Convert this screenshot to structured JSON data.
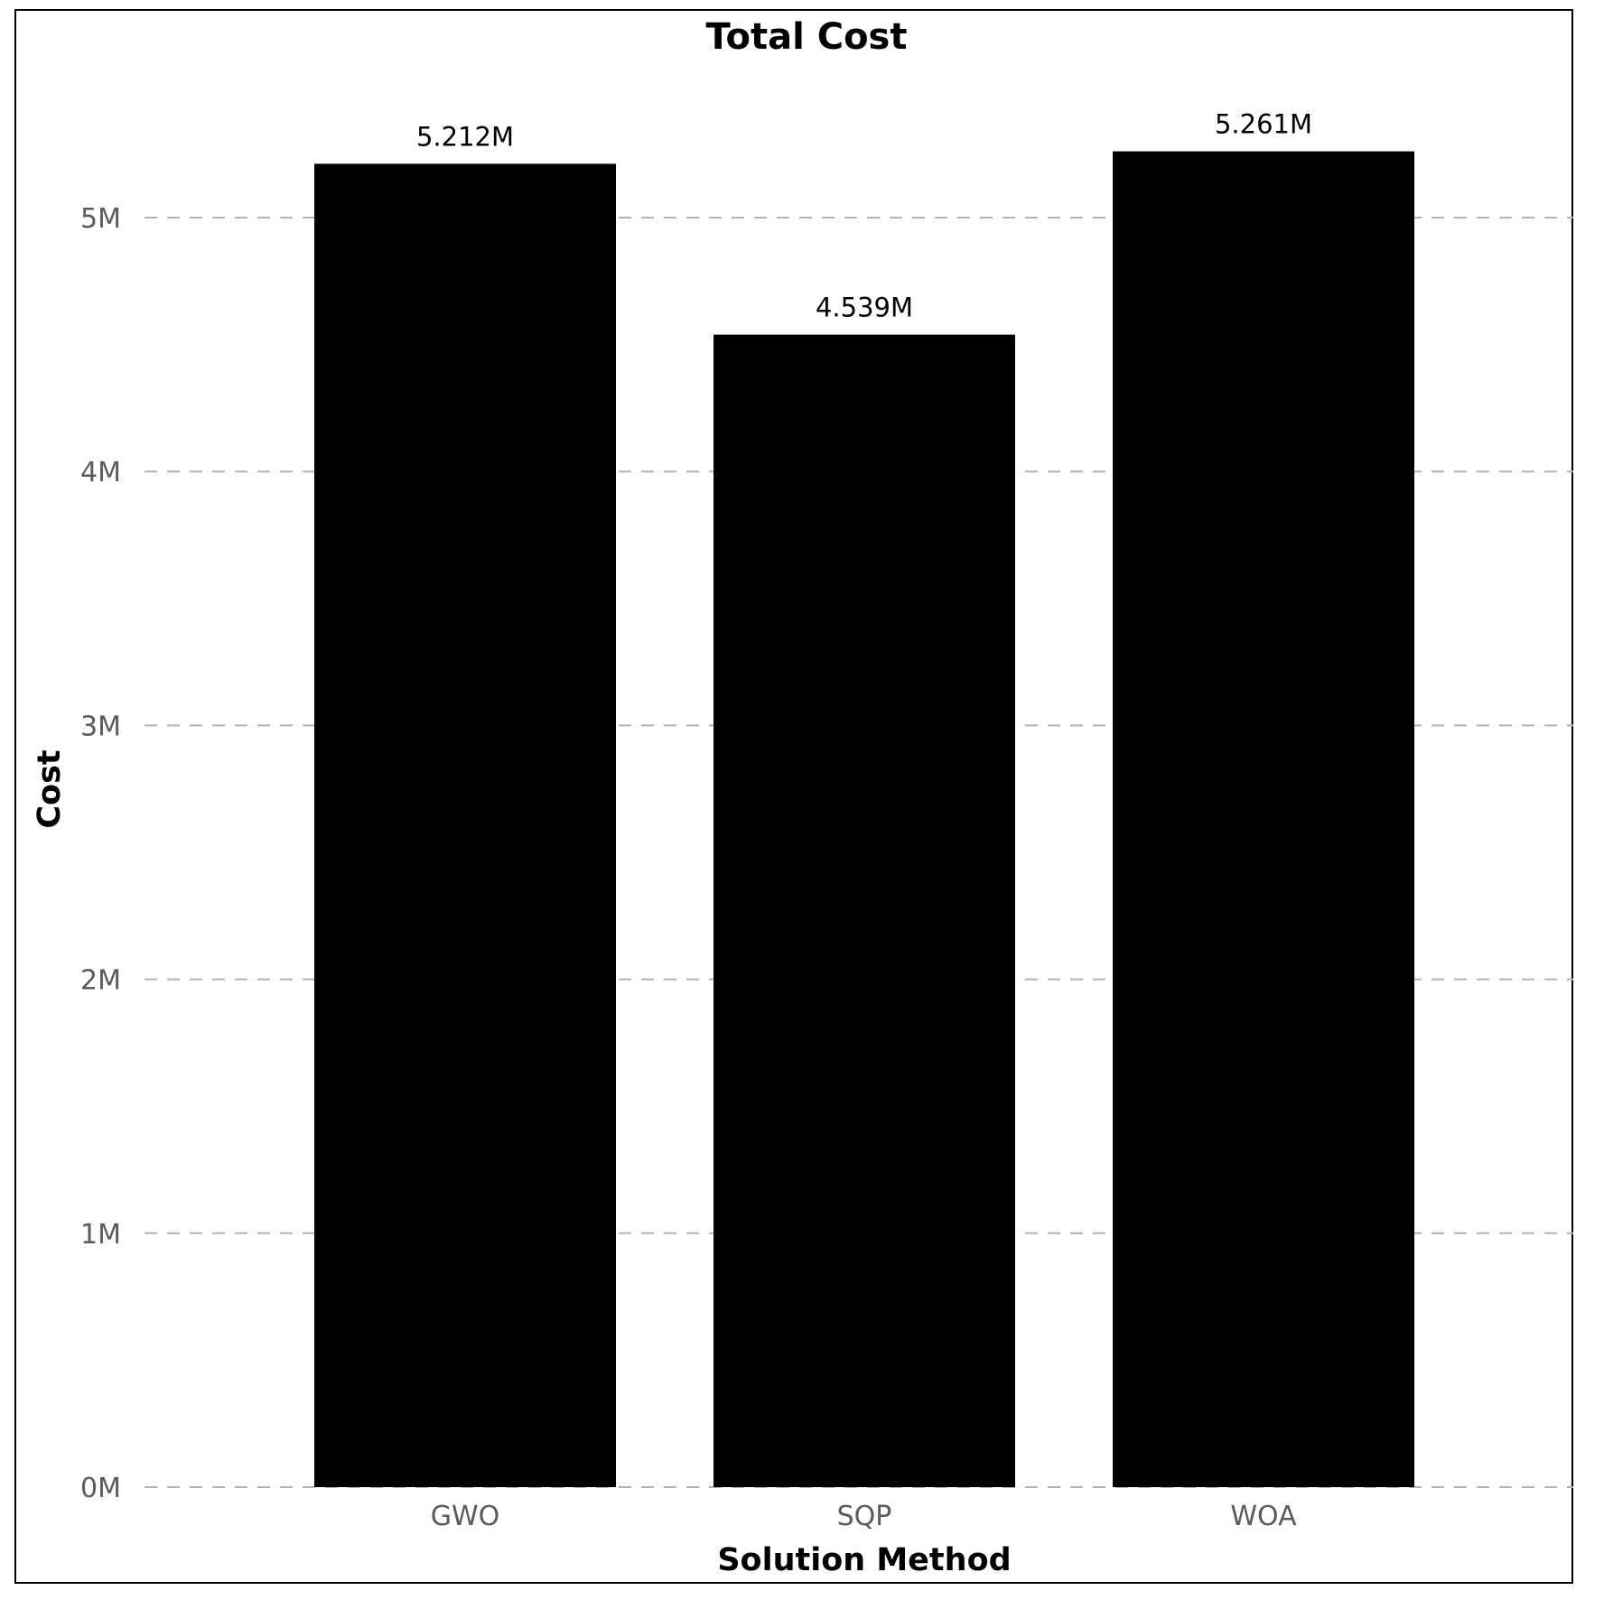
{
  "chart_data": {
    "type": "bar",
    "title": "Total Cost",
    "xlabel": "Solution Method",
    "ylabel": "Cost",
    "categories": [
      "GWO",
      "SQP",
      "WOA"
    ],
    "values": [
      5.212,
      4.539,
      5.261
    ],
    "value_unit": "M",
    "data_labels": [
      "5.212M",
      "4.539M",
      "5.261M"
    ],
    "yticks": [
      0,
      1,
      2,
      3,
      4,
      5
    ],
    "ytick_labels": [
      "0M",
      "1M",
      "2M",
      "3M",
      "4M",
      "5M"
    ],
    "ylim": [
      0,
      5.261
    ],
    "grid": "horizontal dashed",
    "legend": "none",
    "colors": {
      "bar": "#000000",
      "grid": "#b3b3b3",
      "tick_text": "#5b5b5b",
      "frame": "#000000"
    }
  }
}
